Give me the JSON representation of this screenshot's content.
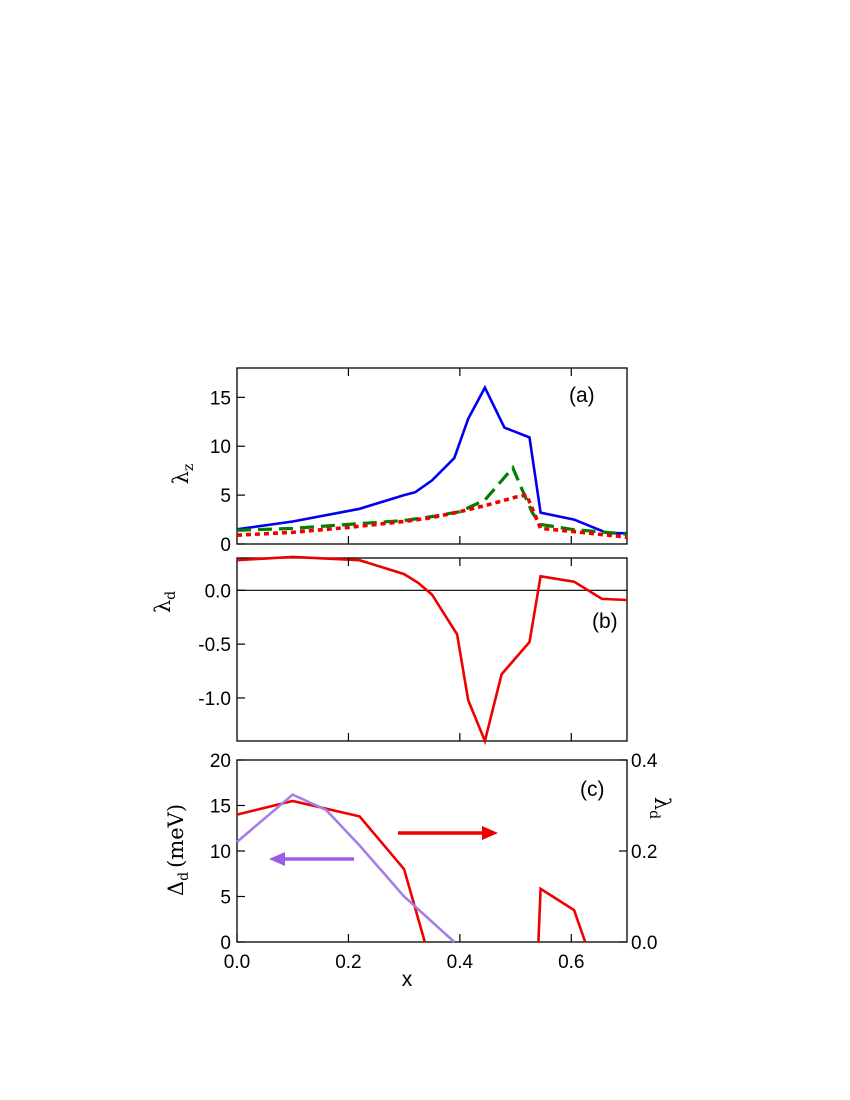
{
  "chart_data": [
    {
      "panel": "(a)",
      "type": "line",
      "ylabel": "λ",
      "ylabel_sub": "z",
      "xlim": [
        0,
        0.7
      ],
      "ylim": [
        0,
        18
      ],
      "yticks": [
        0,
        5,
        10,
        15
      ],
      "ytick_labels": [
        "0",
        "5",
        "10",
        "15"
      ],
      "grid": false,
      "series": [
        {
          "color": "#0000ee",
          "style": "solid",
          "x": [
            0,
            0.1,
            0.22,
            0.3,
            0.32,
            0.35,
            0.39,
            0.415,
            0.445,
            0.48,
            0.525,
            0.545,
            0.605,
            0.665,
            0.7
          ],
          "y": [
            1.5,
            2.3,
            3.6,
            5.0,
            5.3,
            6.5,
            8.8,
            12.8,
            16.0,
            11.9,
            10.9,
            3.2,
            2.5,
            1.1,
            1.1
          ]
        },
        {
          "color": "#008000",
          "style": "dashed",
          "x": [
            0,
            0.1,
            0.2,
            0.3,
            0.35,
            0.4,
            0.445,
            0.48,
            0.495,
            0.51,
            0.53,
            0.545,
            0.6,
            0.7
          ],
          "y": [
            1.4,
            1.6,
            2.0,
            2.4,
            2.8,
            3.3,
            4.5,
            6.8,
            7.8,
            5.8,
            3.2,
            2.0,
            1.5,
            1.0
          ]
        },
        {
          "color": "#ee0000",
          "style": "dotted",
          "x": [
            0,
            0.1,
            0.2,
            0.3,
            0.35,
            0.4,
            0.45,
            0.5,
            0.52,
            0.545,
            0.6,
            0.7
          ],
          "y": [
            0.9,
            1.2,
            1.7,
            2.3,
            2.7,
            3.3,
            4.0,
            4.8,
            5.0,
            1.6,
            1.3,
            0.7
          ]
        }
      ]
    },
    {
      "panel": "(b)",
      "type": "line",
      "ylabel": "λ",
      "ylabel_sub": "d",
      "xlim": [
        0,
        0.7
      ],
      "ylim": [
        -1.4,
        0.3
      ],
      "yticks": [
        0.0,
        -0.5,
        -1.0
      ],
      "ytick_labels": [
        "0.0",
        "-0.5",
        "-1.0"
      ],
      "reference_line": 0,
      "series": [
        {
          "color": "#ee0000",
          "style": "solid",
          "x": [
            0,
            0.1,
            0.22,
            0.3,
            0.325,
            0.35,
            0.395,
            0.415,
            0.445,
            0.475,
            0.525,
            0.545,
            0.605,
            0.655,
            0.7
          ],
          "y": [
            0.28,
            0.31,
            0.28,
            0.15,
            0.07,
            -0.04,
            -0.41,
            -1.02,
            -1.4,
            -0.78,
            -0.48,
            0.13,
            0.08,
            -0.08,
            -0.09
          ]
        }
      ]
    },
    {
      "panel": "(c)",
      "type": "line",
      "xlabel": "x",
      "ylabel": "Δ",
      "ylabel_sub": "d",
      "ylabel_unit": "(meV)",
      "ylabel_right": "λ",
      "ylabel_right_sub": "d",
      "xlim": [
        0,
        0.7
      ],
      "ylim": [
        0,
        20
      ],
      "yticks": [
        0,
        5,
        10,
        15,
        20
      ],
      "ytick_labels": [
        "0",
        "5",
        "10",
        "15",
        "20"
      ],
      "ylim_right": [
        0,
        0.4
      ],
      "yticks_right": [
        0,
        0.2,
        0.4
      ],
      "ytick_labels_right": [
        "0.0",
        "0.2",
        "0.4"
      ],
      "xticks": [
        0,
        0.2,
        0.4,
        0.6
      ],
      "xtick_labels": [
        "0.0",
        "0.2",
        "0.4",
        "0.6"
      ],
      "series": [
        {
          "color": "#ee0000",
          "style": "solid",
          "axis": "right",
          "segments": [
            {
              "x": [
                0,
                0.1,
                0.22,
                0.3,
                0.337
              ],
              "y": [
                0.28,
                0.31,
                0.276,
                0.16,
                0.0
              ]
            },
            {
              "x": [
                0.541,
                0.545,
                0.605,
                0.625
              ],
              "y": [
                0.0,
                0.117,
                0.07,
                0.0
              ]
            }
          ]
        },
        {
          "color": "#a77ee8",
          "style": "solid",
          "axis": "left",
          "segments": [
            {
              "x": [
                0,
                0.1,
                0.16,
                0.22,
                0.3,
                0.39
              ],
              "y": [
                11.0,
                16.2,
                14.5,
                10.6,
                5.0,
                0.0
              ]
            }
          ]
        }
      ],
      "arrows": [
        {
          "color": "#ee0000",
          "direction": "right",
          "target_axis": "right"
        },
        {
          "color": "#9b5de5",
          "direction": "left",
          "target_axis": "left"
        }
      ]
    }
  ]
}
